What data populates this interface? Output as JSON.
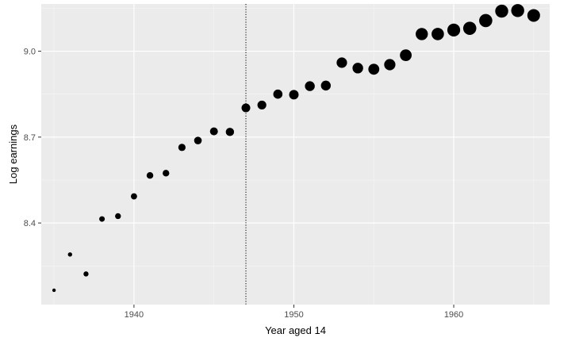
{
  "chart_data": {
    "type": "scatter",
    "title": "",
    "xlabel": "Year aged 14",
    "ylabel": "Log earnings",
    "xlim": [
      1934.2,
      1966.0
    ],
    "ylim": [
      8.115,
      9.165
    ],
    "x_ticks": [
      1940,
      1950,
      1960
    ],
    "y_ticks": [
      8.4,
      8.7,
      9.0
    ],
    "x_tick_labels": [
      "1940",
      "1950",
      "1960"
    ],
    "y_tick_labels": [
      "8.4",
      "8.7",
      "9.0"
    ],
    "grid": true,
    "legend": "none",
    "vertical_line": {
      "x": 1947,
      "style": "dotted"
    },
    "colors": {
      "panel": "#ebebeb",
      "grid_major": "#ffffff",
      "grid_minor": "#f5f5f5",
      "point": "#000000",
      "tick": "#4d4d4d"
    },
    "points": [
      {
        "x": 1935,
        "y": 8.165,
        "s": 2.2
      },
      {
        "x": 1936,
        "y": 8.29,
        "s": 2.7
      },
      {
        "x": 1937,
        "y": 8.222,
        "s": 3.2
      },
      {
        "x": 1938,
        "y": 8.414,
        "s": 3.5
      },
      {
        "x": 1939,
        "y": 8.424,
        "s": 3.7
      },
      {
        "x": 1940,
        "y": 8.493,
        "s": 3.9
      },
      {
        "x": 1941,
        "y": 8.566,
        "s": 4.2
      },
      {
        "x": 1942,
        "y": 8.574,
        "s": 4.2
      },
      {
        "x": 1943,
        "y": 8.664,
        "s": 4.6
      },
      {
        "x": 1944,
        "y": 8.688,
        "s": 4.8
      },
      {
        "x": 1945,
        "y": 8.72,
        "s": 5.0
      },
      {
        "x": 1946,
        "y": 8.718,
        "s": 5.2
      },
      {
        "x": 1947,
        "y": 8.802,
        "s": 5.5
      },
      {
        "x": 1948,
        "y": 8.812,
        "s": 5.6
      },
      {
        "x": 1949,
        "y": 8.85,
        "s": 5.8
      },
      {
        "x": 1950,
        "y": 8.848,
        "s": 6.0
      },
      {
        "x": 1951,
        "y": 8.878,
        "s": 6.2
      },
      {
        "x": 1952,
        "y": 8.88,
        "s": 6.2
      },
      {
        "x": 1953,
        "y": 8.96,
        "s": 6.6
      },
      {
        "x": 1954,
        "y": 8.941,
        "s": 6.7
      },
      {
        "x": 1955,
        "y": 8.937,
        "s": 6.9
      },
      {
        "x": 1956,
        "y": 8.953,
        "s": 7.1
      },
      {
        "x": 1957,
        "y": 8.986,
        "s": 7.4
      },
      {
        "x": 1958,
        "y": 9.06,
        "s": 7.7
      },
      {
        "x": 1959,
        "y": 9.06,
        "s": 7.8
      },
      {
        "x": 1960,
        "y": 9.074,
        "s": 8.1
      },
      {
        "x": 1961,
        "y": 9.08,
        "s": 8.3
      },
      {
        "x": 1962,
        "y": 9.107,
        "s": 8.3
      },
      {
        "x": 1963,
        "y": 9.14,
        "s": 8.2
      },
      {
        "x": 1964,
        "y": 9.142,
        "s": 8.2
      },
      {
        "x": 1965,
        "y": 9.125,
        "s": 8.0
      }
    ]
  }
}
